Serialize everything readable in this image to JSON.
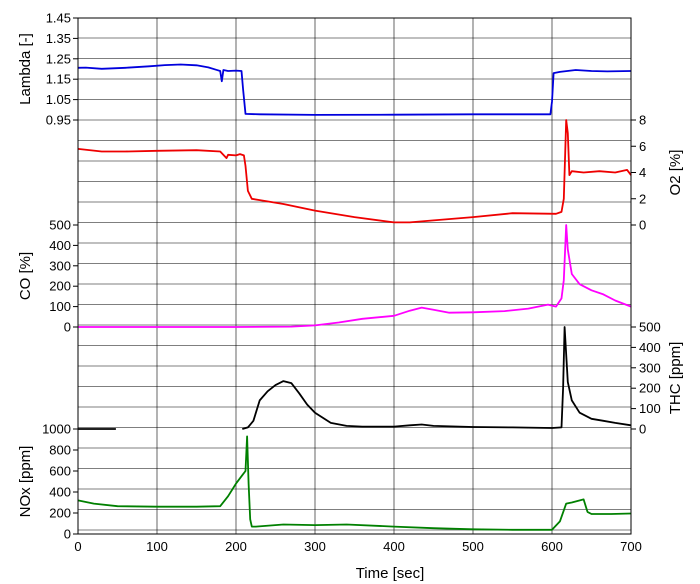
{
  "chart_data": {
    "type": "line",
    "grid": true,
    "x_axis": {
      "label": "Time  [sec]",
      "range": [
        0,
        700
      ],
      "ticks": [
        "0",
        "100",
        "200",
        "300",
        "400",
        "500",
        "600",
        "700"
      ]
    },
    "panels": [
      {
        "id": "lambda",
        "ylabel": "Lambda [-]",
        "axis_side": "left",
        "ylim": [
          0.95,
          1.45
        ],
        "ticks": [
          0.95,
          1.05,
          1.15,
          1.25,
          1.35,
          1.45
        ],
        "tick_labels": [
          "0.95",
          "1.05",
          "1.15",
          "1.25",
          "1.35",
          "1.45"
        ],
        "series": [
          {
            "color": "#0000dd",
            "x": [
              0,
              10,
              30,
              60,
              90,
              110,
              130,
              150,
              165,
              175,
              180,
              182,
              184,
              190,
              200,
              207,
              209,
              212,
              230,
              300,
              400,
              500,
              598,
              600,
              602,
              610,
              630,
              650,
              670,
              700
            ],
            "y": [
              1.206,
              1.207,
              1.201,
              1.206,
              1.213,
              1.219,
              1.222,
              1.218,
              1.208,
              1.196,
              1.19,
              1.14,
              1.195,
              1.19,
              1.192,
              1.19,
              1.1,
              0.98,
              0.978,
              0.975,
              0.976,
              0.978,
              0.978,
              1.04,
              1.18,
              1.186,
              1.195,
              1.19,
              1.188,
              1.19
            ]
          }
        ]
      },
      {
        "id": "o2",
        "ylabel": "O2 [%]",
        "axis_side": "right",
        "ylim": [
          0,
          8
        ],
        "ticks": [
          0,
          2,
          4,
          6,
          8
        ],
        "tick_labels": [
          "0",
          "2",
          "4",
          "6",
          "8"
        ],
        "series": [
          {
            "color": "#ee0000",
            "x": [
              0,
              30,
              60,
              100,
              150,
              180,
              188,
              190,
              200,
              205,
              210,
              212,
              215,
              220,
              230,
              260,
              300,
              350,
              400,
              420,
              450,
              500,
              550,
              605,
              612,
              615,
              618,
              620,
              622,
              625,
              640,
              660,
              680,
              695,
              700
            ],
            "y": [
              5.8,
              5.6,
              5.6,
              5.65,
              5.7,
              5.6,
              5.1,
              5.35,
              5.3,
              5.4,
              5.3,
              4.5,
              2.6,
              2.0,
              1.9,
              1.6,
              1.1,
              0.6,
              0.2,
              0.2,
              0.35,
              0.6,
              0.9,
              0.85,
              1.0,
              2.0,
              8.0,
              7.0,
              3.8,
              4.1,
              4.0,
              4.1,
              4.0,
              4.2,
              3.8
            ]
          }
        ]
      },
      {
        "id": "co",
        "ylabel": "CO [%]",
        "axis_side": "left",
        "ylim": [
          0,
          500
        ],
        "ticks": [
          0,
          100,
          200,
          300,
          400,
          500
        ],
        "tick_labels": [
          "0",
          "100",
          "200",
          "300",
          "400",
          "500"
        ],
        "series": [
          {
            "color": "#ff00ff",
            "x": [
              0,
              100,
              200,
              270,
              300,
              330,
              360,
              400,
              420,
              435,
              450,
              470,
              500,
              540,
              570,
              595,
              605,
              612,
              615,
              618,
              620,
              625,
              635,
              650,
              665,
              680,
              700
            ],
            "y": [
              0,
              0,
              0,
              2,
              8,
              22,
              40,
              55,
              80,
              95,
              85,
              70,
              72,
              78,
              90,
              110,
              100,
              140,
              230,
              500,
              380,
              260,
              210,
              180,
              160,
              130,
              100
            ]
          }
        ]
      },
      {
        "id": "thc",
        "ylabel": "THC [ppm]",
        "axis_side": "right",
        "ylim": [
          0,
          500
        ],
        "ticks": [
          0,
          100,
          200,
          300,
          400,
          500
        ],
        "tick_labels": [
          "0",
          "100",
          "200",
          "300",
          "400",
          "500"
        ],
        "series": [
          {
            "color": "#000000",
            "x": [
              0,
              48
            ],
            "y": [
              0,
              0
            ]
          },
          {
            "color": "#000000",
            "x": [
              208,
              215,
              222,
              230,
              240,
              250,
              260,
              270,
              280,
              290,
              300,
              320,
              340,
              360,
              400,
              420,
              435,
              450,
              500,
              550,
              600,
              612,
              614,
              616,
              620,
              625,
              635,
              650,
              665,
              680,
              700
            ],
            "y": [
              0,
              8,
              40,
              140,
              185,
              215,
              235,
              225,
              175,
              120,
              80,
              30,
              15,
              12,
              12,
              18,
              22,
              15,
              10,
              8,
              5,
              8,
              200,
              500,
              230,
              140,
              80,
              50,
              40,
              30,
              18
            ]
          }
        ]
      },
      {
        "id": "nox",
        "ylabel": "NOx [ppm]",
        "axis_side": "left",
        "ylim": [
          0,
          1000
        ],
        "ticks": [
          0,
          200,
          400,
          600,
          800,
          1000
        ],
        "tick_labels": [
          "0",
          "200",
          "400",
          "600",
          "800",
          "1000"
        ],
        "series": [
          {
            "color": "#008000",
            "x": [
              0,
              20,
              50,
              100,
              150,
              180,
              190,
              200,
              208,
              212,
              214,
              216,
              218,
              220,
              225,
              260,
              300,
              340,
              400,
              450,
              500,
              550,
              600,
              610,
              618,
              625,
              640,
              645,
              650,
              675,
              700
            ],
            "y": [
              320,
              290,
              265,
              260,
              260,
              265,
              360,
              480,
              560,
              600,
              930,
              480,
              140,
              70,
              70,
              90,
              85,
              90,
              70,
              55,
              45,
              40,
              40,
              120,
              290,
              300,
              330,
              210,
              190,
              190,
              195
            ]
          }
        ]
      }
    ]
  }
}
